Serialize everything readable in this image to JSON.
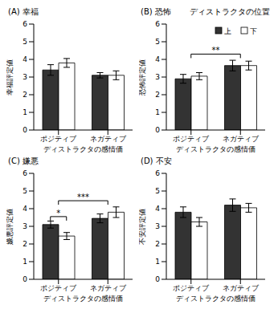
{
  "chart_data": [
    {
      "type": "bar",
      "title": "(A) 幸福",
      "y_label": "幸福評定値",
      "x_label": "ディストラクタの感情価",
      "categories": [
        "ポジティブ",
        "ネガティブ"
      ],
      "series": [
        {
          "name": "上",
          "color": "#333333",
          "values": [
            3.4,
            3.1
          ],
          "errors": [
            0.3,
            0.15
          ]
        },
        {
          "name": "下",
          "color": "#ffffff",
          "values": [
            3.8,
            3.1
          ],
          "errors": [
            0.25,
            0.25
          ]
        }
      ],
      "ylim": [
        0,
        6
      ],
      "yticks": [
        0,
        1,
        2,
        3,
        4,
        5,
        6
      ]
    },
    {
      "type": "bar",
      "title": "(B) 恐怖",
      "y_label": "恐怖評定値",
      "x_label": "ディストラクタの感情価",
      "categories": [
        "ポジティブ",
        "ネガティブ"
      ],
      "series": [
        {
          "name": "上",
          "color": "#333333",
          "values": [
            2.9,
            3.65
          ],
          "errors": [
            0.25,
            0.3
          ]
        },
        {
          "name": "下",
          "color": "#ffffff",
          "values": [
            3.05,
            3.65
          ],
          "errors": [
            0.2,
            0.25
          ]
        }
      ],
      "ylim": [
        0,
        6
      ],
      "yticks": [
        0,
        1,
        2,
        3,
        4,
        5,
        6
      ],
      "legend": "top-right",
      "legend_title": "ディストラクタの位置",
      "annotations": [
        {
          "text": "**",
          "from": "ポジティブ",
          "to": "ネガティブ"
        }
      ]
    },
    {
      "type": "bar",
      "title": "(C) 嫌悪",
      "y_label": "嫌悪評定値",
      "x_label": "ディストラクタの感情価",
      "categories": [
        "ポジティブ",
        "ネガティブ"
      ],
      "series": [
        {
          "name": "上",
          "color": "#333333",
          "values": [
            3.1,
            3.45
          ],
          "errors": [
            0.2,
            0.25
          ]
        },
        {
          "name": "下",
          "color": "#ffffff",
          "values": [
            2.45,
            3.8
          ],
          "errors": [
            0.2,
            0.3
          ]
        }
      ],
      "ylim": [
        0,
        6
      ],
      "yticks": [
        0,
        1,
        2,
        3,
        4,
        5,
        6
      ],
      "annotations": [
        {
          "text": "*",
          "category": "ポジティブ",
          "from": "上",
          "to": "下"
        },
        {
          "text": "***",
          "from": "ポジティブ",
          "to": "ネガティブ"
        }
      ]
    },
    {
      "type": "bar",
      "title": "(D) 不安",
      "y_label": "不安評定値",
      "x_label": "ディストラクタの感情価",
      "categories": [
        "ポジティブ",
        "ネガティブ"
      ],
      "series": [
        {
          "name": "上",
          "color": "#333333",
          "values": [
            3.8,
            4.2
          ],
          "errors": [
            0.3,
            0.35
          ]
        },
        {
          "name": "下",
          "color": "#ffffff",
          "values": [
            3.25,
            4.05
          ],
          "errors": [
            0.25,
            0.25
          ]
        }
      ],
      "ylim": [
        0,
        6
      ],
      "yticks": [
        0,
        1,
        2,
        3,
        4,
        5,
        6
      ]
    }
  ]
}
